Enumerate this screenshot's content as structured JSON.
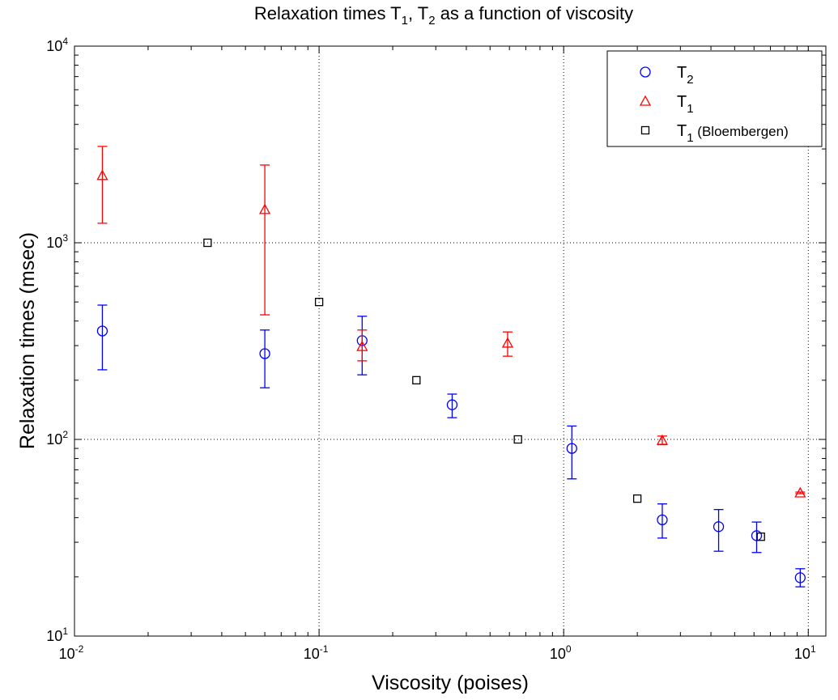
{
  "chart_data": {
    "type": "scatter",
    "title_main": "Relaxation times T",
    "title_sub1": "1",
    "title_mid": ", T",
    "title_sub2": "2",
    "title_end": " as a function of viscosity",
    "xlabel": "Viscosity (poises)",
    "ylabel": "Relaxation times (msec)",
    "xscale": "log",
    "yscale": "log",
    "xlim": [
      0.01,
      11.8
    ],
    "ylim": [
      10,
      10000
    ],
    "x_ticks": [
      0.01,
      0.1,
      1,
      10
    ],
    "x_tick_labels": [
      [
        "10",
        "-2"
      ],
      [
        "10",
        "-1"
      ],
      [
        "10",
        "0"
      ],
      [
        "10",
        "1"
      ]
    ],
    "y_ticks": [
      10,
      100,
      1000,
      10000
    ],
    "y_tick_labels": [
      [
        "10",
        "1"
      ],
      [
        "10",
        "2"
      ],
      [
        "10",
        "3"
      ],
      [
        "10",
        "4"
      ]
    ],
    "grid": "major dotted",
    "legend_placement": "top-right",
    "series": [
      {
        "name": "T2",
        "legend_main": "T",
        "legend_sub": "2",
        "legend_rest": "",
        "marker": "circle",
        "color": "#0000ff",
        "points": [
          {
            "x": 0.013,
            "y": 356,
            "lo": 226,
            "hi": 482
          },
          {
            "x": 0.06,
            "y": 273,
            "lo": 183,
            "hi": 360
          },
          {
            "x": 0.15,
            "y": 318,
            "lo": 213,
            "hi": 423
          },
          {
            "x": 0.35,
            "y": 150,
            "lo": 129,
            "hi": 170
          },
          {
            "x": 1.08,
            "y": 90,
            "lo": 63,
            "hi": 117
          },
          {
            "x": 2.53,
            "y": 39,
            "lo": 31.5,
            "hi": 47
          },
          {
            "x": 4.3,
            "y": 36,
            "lo": 27,
            "hi": 44
          },
          {
            "x": 6.15,
            "y": 32.4,
            "lo": 26.6,
            "hi": 38
          },
          {
            "x": 9.27,
            "y": 19.8,
            "lo": 17.8,
            "hi": 22
          }
        ]
      },
      {
        "name": "T1",
        "legend_main": "T",
        "legend_sub": "1",
        "legend_rest": "",
        "marker": "triangle",
        "color": "#ff0000",
        "points": [
          {
            "x": 0.013,
            "y": 2200,
            "lo": 1257,
            "hi": 3090
          },
          {
            "x": 0.06,
            "y": 1476,
            "lo": 430,
            "hi": 2485
          },
          {
            "x": 0.15,
            "y": 297,
            "lo": 251,
            "hi": 360
          },
          {
            "x": 0.59,
            "y": 309,
            "lo": 265,
            "hi": 352
          },
          {
            "x": 2.53,
            "y": 99,
            "lo": 94,
            "hi": 104
          },
          {
            "x": 9.27,
            "y": 53.5,
            "lo": 53,
            "hi": 54
          }
        ]
      },
      {
        "name": "T1 (Bloembergen)",
        "legend_main": "T",
        "legend_sub": "1",
        "legend_rest": " (Bloembergen)",
        "marker": "square",
        "color": "#000000",
        "points": [
          {
            "x": 0.035,
            "y": 1000
          },
          {
            "x": 0.1,
            "y": 500
          },
          {
            "x": 0.25,
            "y": 200
          },
          {
            "x": 0.65,
            "y": 100
          },
          {
            "x": 2.0,
            "y": 50
          },
          {
            "x": 6.4,
            "y": 32
          }
        ]
      }
    ]
  }
}
